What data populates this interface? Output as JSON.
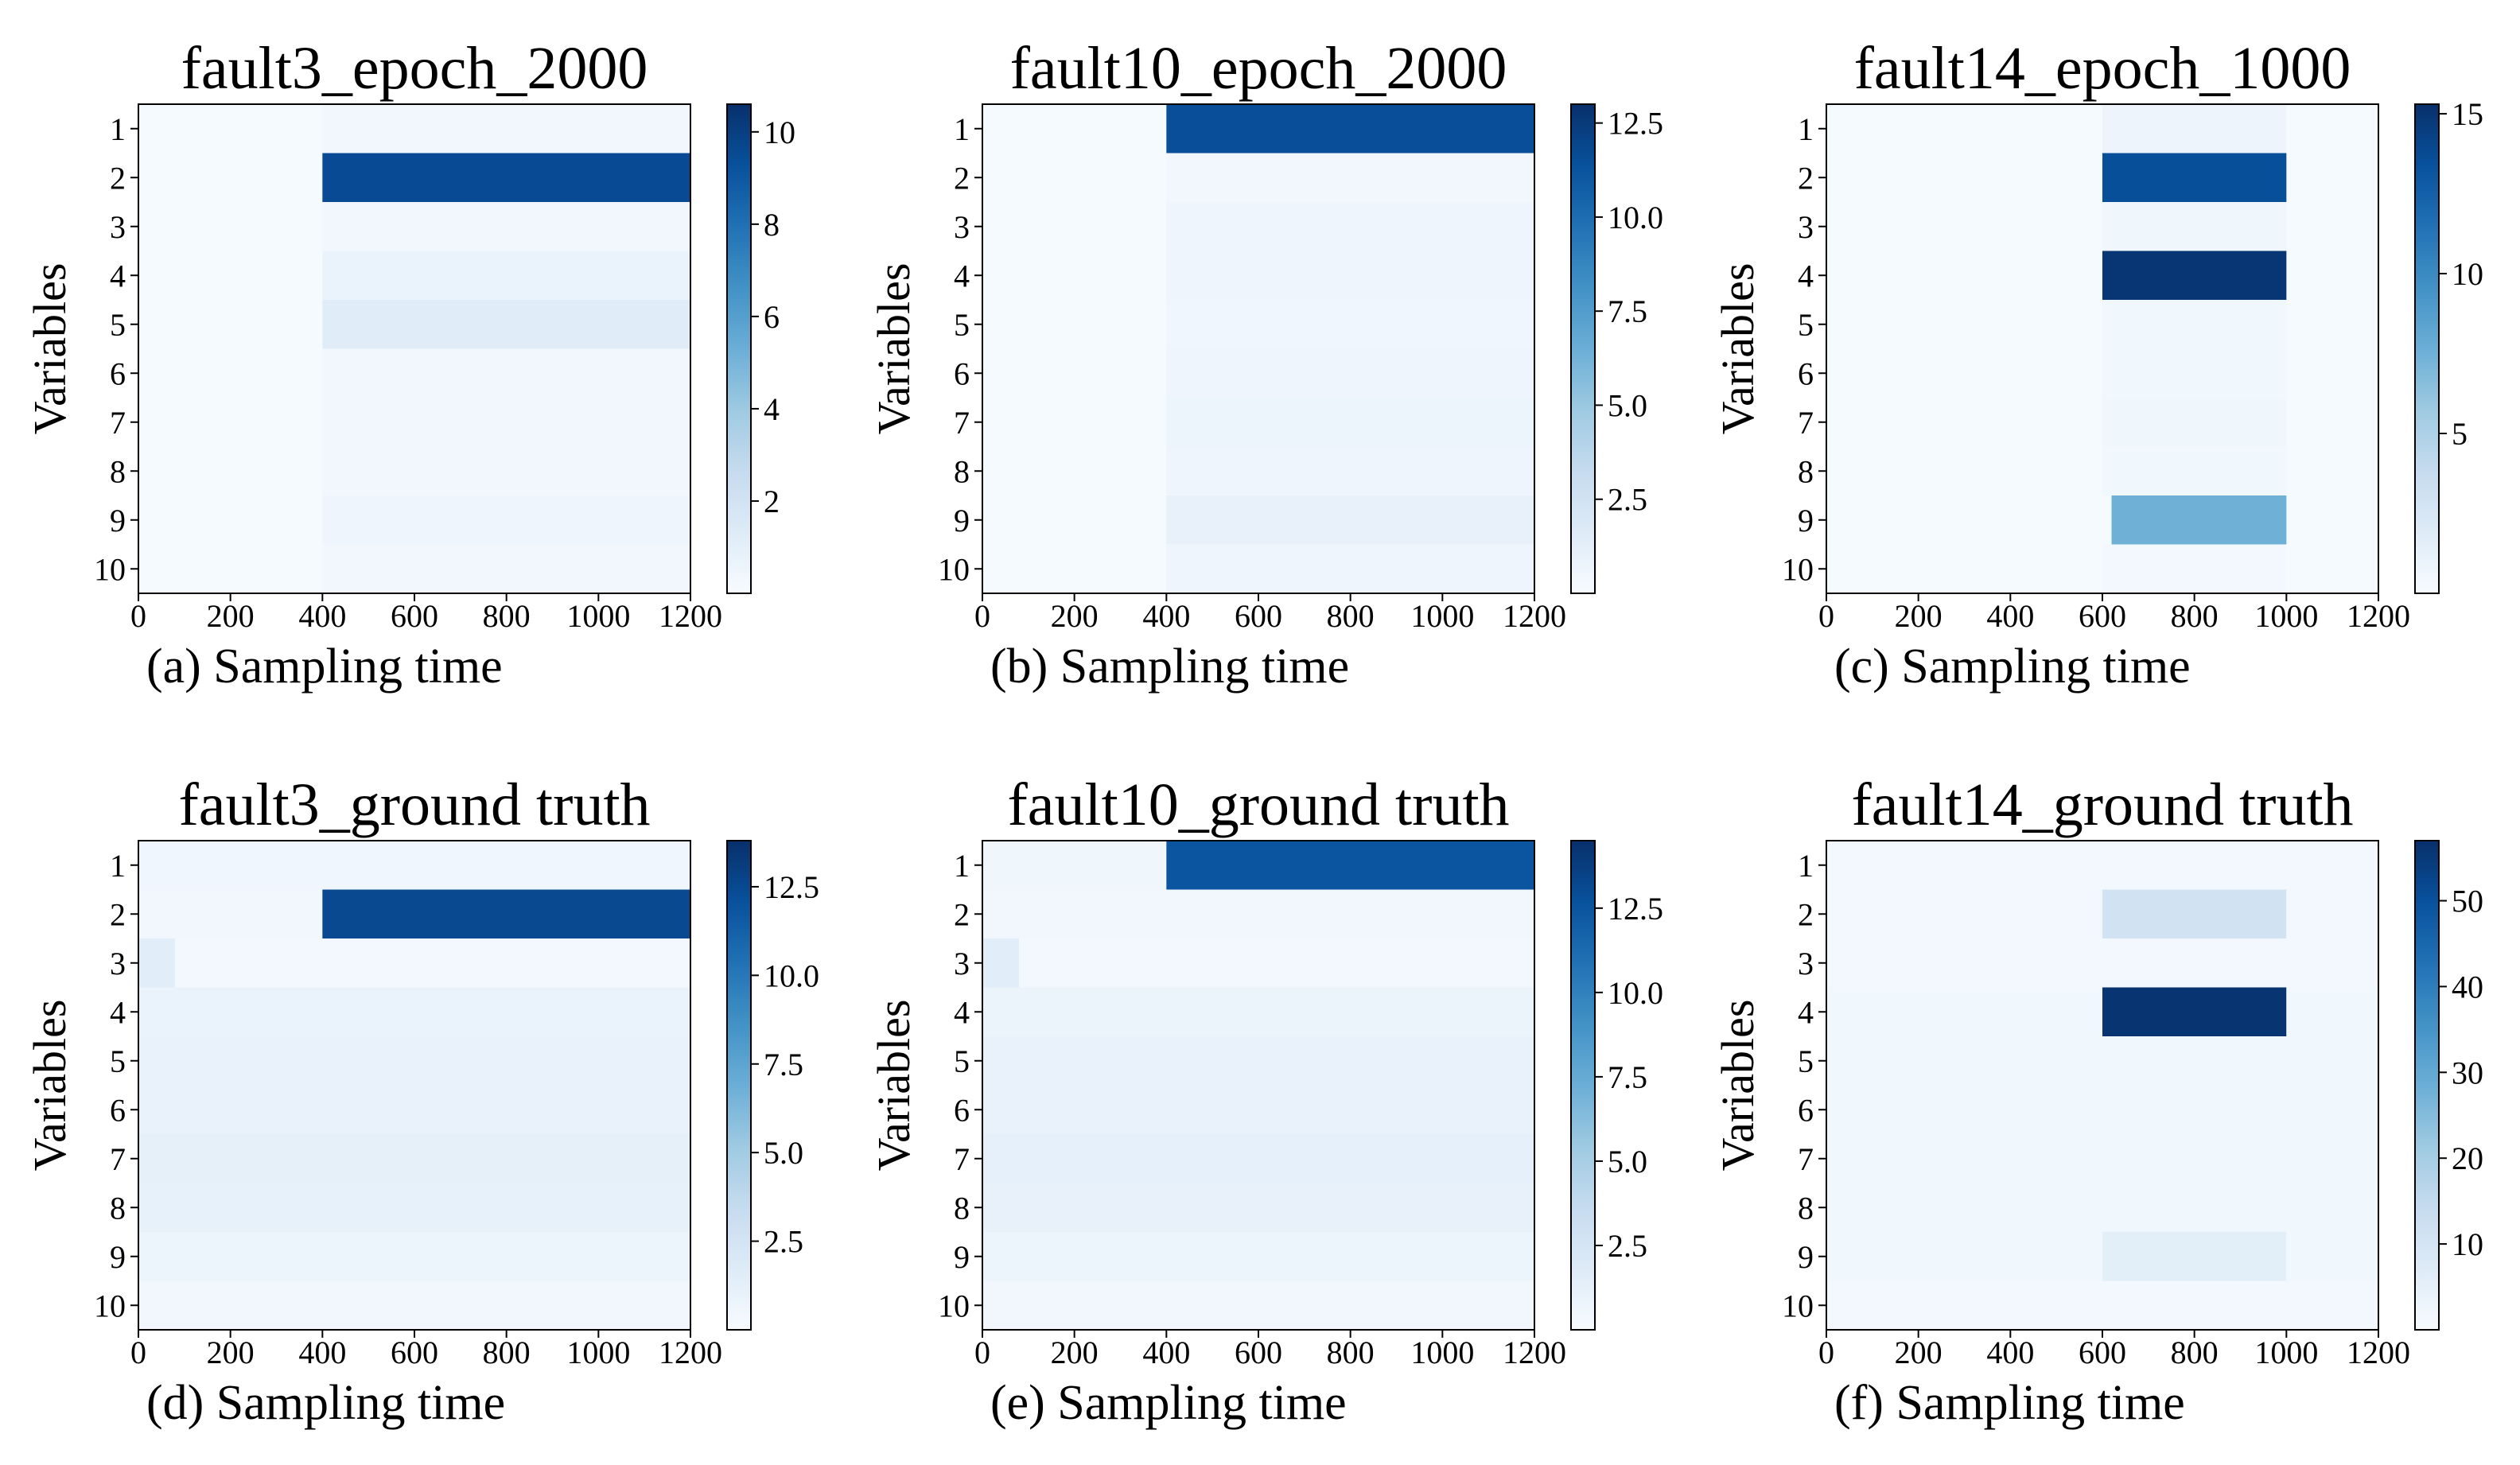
{
  "chart_data": [
    {
      "type": "heatmap",
      "title": "fault3_epoch_2000",
      "caption": "(a) Sampling time",
      "xlabel": "Sampling time",
      "ylabel": "Variables",
      "xlim": [
        0,
        1200
      ],
      "xticks": [
        0,
        200,
        400,
        600,
        800,
        1000,
        1200
      ],
      "yticks": [
        "1",
        "2",
        "3",
        "4",
        "5",
        "6",
        "7",
        "8",
        "9",
        "10"
      ],
      "colorbar": {
        "min": 0,
        "max": 10.6,
        "ticks": [
          "2",
          "4",
          "6",
          "8",
          "10"
        ],
        "tick_values": [
          2,
          4,
          6,
          8,
          10
        ]
      },
      "segments": [
        {
          "variable": 1,
          "start": 400,
          "end": 1200,
          "value": 0.3
        },
        {
          "variable": 2,
          "start": 400,
          "end": 1200,
          "value": 9.5
        },
        {
          "variable": 3,
          "start": 400,
          "end": 1200,
          "value": 0.3
        },
        {
          "variable": 4,
          "start": 400,
          "end": 1200,
          "value": 0.7
        },
        {
          "variable": 5,
          "start": 400,
          "end": 1200,
          "value": 1.2
        },
        {
          "variable": 6,
          "start": 400,
          "end": 1200,
          "value": 0.3
        },
        {
          "variable": 7,
          "start": 400,
          "end": 1200,
          "value": 0.3
        },
        {
          "variable": 8,
          "start": 400,
          "end": 1200,
          "value": 0.3
        },
        {
          "variable": 9,
          "start": 400,
          "end": 1200,
          "value": 0.5
        },
        {
          "variable": 10,
          "start": 400,
          "end": 1200,
          "value": 0.3
        }
      ]
    },
    {
      "type": "heatmap",
      "title": "fault10_epoch_2000",
      "caption": "(b) Sampling time",
      "xlabel": "Sampling time",
      "ylabel": "Variables",
      "xlim": [
        0,
        1200
      ],
      "xticks": [
        0,
        200,
        400,
        600,
        800,
        1000,
        1200
      ],
      "yticks": [
        "1",
        "2",
        "3",
        "4",
        "5",
        "6",
        "7",
        "8",
        "9",
        "10"
      ],
      "colorbar": {
        "min": 0,
        "max": 13,
        "ticks": [
          "2.5",
          "5.0",
          "7.5",
          "10.0",
          "12.5"
        ],
        "tick_values": [
          2.5,
          5.0,
          7.5,
          10.0,
          12.5
        ]
      },
      "segments": [
        {
          "variable": 1,
          "start": 400,
          "end": 1200,
          "value": 11.5
        },
        {
          "variable": 2,
          "start": 400,
          "end": 1200,
          "value": 0.4
        },
        {
          "variable": 3,
          "start": 400,
          "end": 1200,
          "value": 0.6
        },
        {
          "variable": 4,
          "start": 400,
          "end": 1200,
          "value": 0.6
        },
        {
          "variable": 5,
          "start": 400,
          "end": 1200,
          "value": 0.5
        },
        {
          "variable": 6,
          "start": 400,
          "end": 1200,
          "value": 0.6
        },
        {
          "variable": 7,
          "start": 400,
          "end": 1200,
          "value": 0.7
        },
        {
          "variable": 8,
          "start": 400,
          "end": 1200,
          "value": 0.6
        },
        {
          "variable": 9,
          "start": 400,
          "end": 1200,
          "value": 1.0
        },
        {
          "variable": 10,
          "start": 400,
          "end": 1200,
          "value": 0.6
        }
      ]
    },
    {
      "type": "heatmap",
      "title": "fault14_epoch_1000",
      "caption": "(c) Sampling time",
      "xlabel": "Sampling time",
      "ylabel": "Variables",
      "xlim": [
        0,
        1200
      ],
      "xticks": [
        0,
        200,
        400,
        600,
        800,
        1000,
        1200
      ],
      "yticks": [
        "1",
        "2",
        "3",
        "4",
        "5",
        "6",
        "7",
        "8",
        "9",
        "10"
      ],
      "colorbar": {
        "min": 0,
        "max": 15.3,
        "ticks": [
          "5",
          "10",
          "15"
        ],
        "tick_values": [
          5,
          10,
          15
        ]
      },
      "segments": [
        {
          "variable": 1,
          "start": 600,
          "end": 1000,
          "value": 0.8
        },
        {
          "variable": 2,
          "start": 600,
          "end": 1000,
          "value": 13.5
        },
        {
          "variable": 3,
          "start": 600,
          "end": 1000,
          "value": 0.6
        },
        {
          "variable": 4,
          "start": 600,
          "end": 1000,
          "value": 15.0
        },
        {
          "variable": 5,
          "start": 600,
          "end": 1000,
          "value": 0.5
        },
        {
          "variable": 6,
          "start": 600,
          "end": 1000,
          "value": 0.5
        },
        {
          "variable": 7,
          "start": 600,
          "end": 1000,
          "value": 0.6
        },
        {
          "variable": 8,
          "start": 600,
          "end": 1000,
          "value": 0.5
        },
        {
          "variable": 9,
          "start": 620,
          "end": 1000,
          "value": 7.5
        },
        {
          "variable": 10,
          "start": 600,
          "end": 1000,
          "value": 0.4
        }
      ]
    },
    {
      "type": "heatmap",
      "title": "fault3_ground truth",
      "caption": "(d) Sampling time",
      "xlabel": "Sampling time",
      "ylabel": "Variables",
      "xlim": [
        0,
        1200
      ],
      "xticks": [
        0,
        200,
        400,
        600,
        800,
        1000,
        1200
      ],
      "yticks": [
        "1",
        "2",
        "3",
        "4",
        "5",
        "6",
        "7",
        "8",
        "9",
        "10"
      ],
      "colorbar": {
        "min": 0,
        "max": 13.8,
        "ticks": [
          "2.5",
          "5.0",
          "7.5",
          "10.0",
          "12.5"
        ],
        "tick_values": [
          2.5,
          5.0,
          7.5,
          10.0,
          12.5
        ]
      },
      "segments": [
        {
          "variable": 1,
          "start": 0,
          "end": 1200,
          "value": 0.5
        },
        {
          "variable": 2,
          "start": 0,
          "end": 400,
          "value": 0.4
        },
        {
          "variable": 2,
          "start": 400,
          "end": 1200,
          "value": 12.5
        },
        {
          "variable": 3,
          "start": 0,
          "end": 80,
          "value": 1.5
        },
        {
          "variable": 3,
          "start": 80,
          "end": 1200,
          "value": 0.3
        },
        {
          "variable": 4,
          "start": 0,
          "end": 1200,
          "value": 0.9
        },
        {
          "variable": 5,
          "start": 0,
          "end": 1200,
          "value": 1.0
        },
        {
          "variable": 6,
          "start": 0,
          "end": 1200,
          "value": 1.0
        },
        {
          "variable": 7,
          "start": 0,
          "end": 1200,
          "value": 1.2
        },
        {
          "variable": 8,
          "start": 0,
          "end": 1200,
          "value": 1.1
        },
        {
          "variable": 9,
          "start": 0,
          "end": 1200,
          "value": 0.7
        },
        {
          "variable": 10,
          "start": 0,
          "end": 1200,
          "value": 0.4
        }
      ]
    },
    {
      "type": "heatmap",
      "title": "fault10_ground truth",
      "caption": "(e) Sampling time",
      "xlabel": "Sampling time",
      "ylabel": "Variables",
      "xlim": [
        0,
        1200
      ],
      "xticks": [
        0,
        200,
        400,
        600,
        800,
        1000,
        1200
      ],
      "yticks": [
        "1",
        "2",
        "3",
        "4",
        "5",
        "6",
        "7",
        "8",
        "9",
        "10"
      ],
      "colorbar": {
        "min": 0,
        "max": 14.5,
        "ticks": [
          "2.5",
          "5.0",
          "7.5",
          "10.0",
          "12.5"
        ],
        "tick_values": [
          2.5,
          5.0,
          7.5,
          10.0,
          12.5
        ]
      },
      "segments": [
        {
          "variable": 1,
          "start": 0,
          "end": 400,
          "value": 0.6
        },
        {
          "variable": 1,
          "start": 400,
          "end": 1200,
          "value": 12.5
        },
        {
          "variable": 2,
          "start": 0,
          "end": 1200,
          "value": 0.4
        },
        {
          "variable": 3,
          "start": 0,
          "end": 80,
          "value": 1.6
        },
        {
          "variable": 3,
          "start": 80,
          "end": 1200,
          "value": 0.3
        },
        {
          "variable": 4,
          "start": 0,
          "end": 1200,
          "value": 0.9
        },
        {
          "variable": 5,
          "start": 0,
          "end": 1200,
          "value": 1.0
        },
        {
          "variable": 6,
          "start": 0,
          "end": 1200,
          "value": 1.0
        },
        {
          "variable": 7,
          "start": 0,
          "end": 1200,
          "value": 1.2
        },
        {
          "variable": 8,
          "start": 0,
          "end": 1200,
          "value": 1.1
        },
        {
          "variable": 9,
          "start": 0,
          "end": 1200,
          "value": 0.7
        },
        {
          "variable": 10,
          "start": 0,
          "end": 1200,
          "value": 0.4
        }
      ]
    },
    {
      "type": "heatmap",
      "title": "fault14_ground truth",
      "caption": "(f) Sampling time",
      "xlabel": "Sampling time",
      "ylabel": "Variables",
      "xlim": [
        0,
        1200
      ],
      "xticks": [
        0,
        200,
        400,
        600,
        800,
        1000,
        1200
      ],
      "yticks": [
        "1",
        "2",
        "3",
        "4",
        "5",
        "6",
        "7",
        "8",
        "9",
        "10"
      ],
      "colorbar": {
        "min": 0,
        "max": 57,
        "ticks": [
          "10",
          "20",
          "30",
          "40",
          "50"
        ],
        "tick_values": [
          10,
          20,
          30,
          40,
          50
        ]
      },
      "segments": [
        {
          "variable": 1,
          "start": 0,
          "end": 1200,
          "value": 1.5
        },
        {
          "variable": 2,
          "start": 0,
          "end": 600,
          "value": 1.5
        },
        {
          "variable": 2,
          "start": 600,
          "end": 1000,
          "value": 11.0
        },
        {
          "variable": 2,
          "start": 1000,
          "end": 1200,
          "value": 1.5
        },
        {
          "variable": 3,
          "start": 0,
          "end": 1200,
          "value": 1.5
        },
        {
          "variable": 4,
          "start": 0,
          "end": 600,
          "value": 2.0
        },
        {
          "variable": 4,
          "start": 600,
          "end": 1000,
          "value": 56.0
        },
        {
          "variable": 4,
          "start": 1000,
          "end": 1200,
          "value": 2.0
        },
        {
          "variable": 5,
          "start": 0,
          "end": 1200,
          "value": 2.0
        },
        {
          "variable": 6,
          "start": 0,
          "end": 1200,
          "value": 2.0
        },
        {
          "variable": 7,
          "start": 0,
          "end": 1200,
          "value": 2.0
        },
        {
          "variable": 8,
          "start": 0,
          "end": 1200,
          "value": 2.0
        },
        {
          "variable": 9,
          "start": 0,
          "end": 600,
          "value": 2.0
        },
        {
          "variable": 9,
          "start": 600,
          "end": 1000,
          "value": 6.0
        },
        {
          "variable": 9,
          "start": 1000,
          "end": 1200,
          "value": 2.0
        },
        {
          "variable": 10,
          "start": 0,
          "end": 1200,
          "value": 1.5
        }
      ]
    }
  ]
}
